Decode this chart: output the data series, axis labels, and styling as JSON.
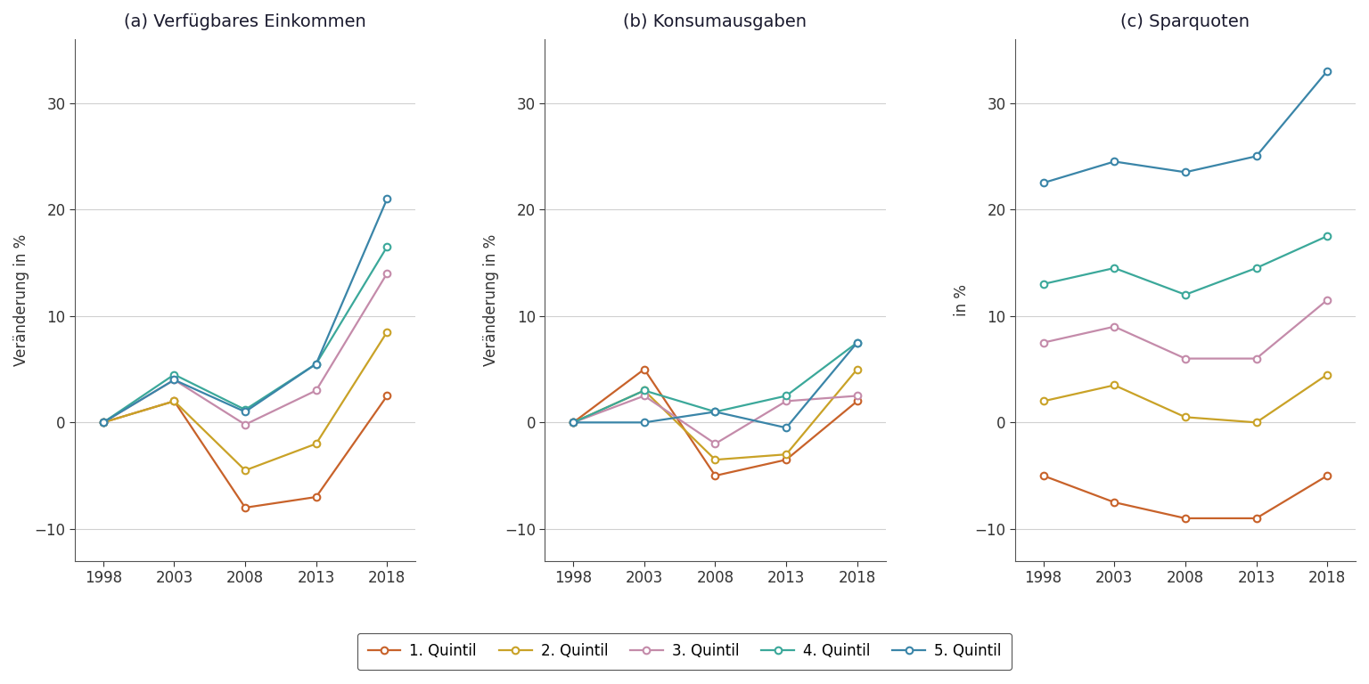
{
  "years": [
    1998,
    2003,
    2008,
    2013,
    2018
  ],
  "panels": [
    {
      "title": "(a) Verfügbares Einkommen",
      "ylabel": "Veränderung in %",
      "ylim": [
        -13,
        36
      ],
      "yticks": [
        -10,
        0,
        10,
        20,
        30
      ],
      "series": [
        {
          "label": "1. Quintil",
          "color": "#C8622A",
          "values": [
            0,
            2.0,
            -8.0,
            -7.0,
            2.5
          ]
        },
        {
          "label": "2. Quintil",
          "color": "#C9A227",
          "values": [
            0,
            2.0,
            -4.5,
            -2.0,
            8.5
          ]
        },
        {
          "label": "3. Quintil",
          "color": "#C48BAA",
          "values": [
            0,
            4.0,
            -0.2,
            3.0,
            14.0
          ]
        },
        {
          "label": "4. Quintil",
          "color": "#3BA89A",
          "values": [
            0,
            4.5,
            1.2,
            5.5,
            16.5
          ]
        },
        {
          "label": "5. Quintil",
          "color": "#3A85A8",
          "values": [
            0,
            4.0,
            1.0,
            5.5,
            21.0
          ]
        }
      ]
    },
    {
      "title": "(b) Konsumausgaben",
      "ylabel": "Veränderung in %",
      "ylim": [
        -13,
        36
      ],
      "yticks": [
        -10,
        0,
        10,
        20,
        30
      ],
      "series": [
        {
          "label": "1. Quintil",
          "color": "#C8622A",
          "values": [
            0,
            5.0,
            -5.0,
            -3.5,
            2.0
          ]
        },
        {
          "label": "2. Quintil",
          "color": "#C9A227",
          "values": [
            0,
            3.0,
            -3.5,
            -3.0,
            5.0
          ]
        },
        {
          "label": "3. Quintil",
          "color": "#C48BAA",
          "values": [
            0,
            2.5,
            -2.0,
            2.0,
            2.5
          ]
        },
        {
          "label": "4. Quintil",
          "color": "#3BA89A",
          "values": [
            0,
            3.0,
            1.0,
            2.5,
            7.5
          ]
        },
        {
          "label": "5. Quintil",
          "color": "#3A85A8",
          "values": [
            0,
            0.0,
            1.0,
            -0.5,
            7.5
          ]
        }
      ]
    },
    {
      "title": "(c) Sparquoten",
      "ylabel": "in %",
      "ylim": [
        -13,
        36
      ],
      "yticks": [
        -10,
        0,
        10,
        20,
        30
      ],
      "series": [
        {
          "label": "1. Quintil",
          "color": "#C8622A",
          "values": [
            -5.0,
            -7.5,
            -9.0,
            -9.0,
            -5.0
          ]
        },
        {
          "label": "2. Quintil",
          "color": "#C9A227",
          "values": [
            2.0,
            3.5,
            0.5,
            0.0,
            4.5
          ]
        },
        {
          "label": "3. Quintil",
          "color": "#C48BAA",
          "values": [
            7.5,
            9.0,
            6.0,
            6.0,
            11.5
          ]
        },
        {
          "label": "4. Quintil",
          "color": "#3BA89A",
          "values": [
            13.0,
            14.5,
            12.0,
            14.5,
            17.5
          ]
        },
        {
          "label": "5. Quintil",
          "color": "#3A85A8",
          "values": [
            22.5,
            24.5,
            23.5,
            25.0,
            33.0
          ]
        }
      ]
    }
  ],
  "legend_labels": [
    "1. Quintil",
    "2. Quintil",
    "3. Quintil",
    "4. Quintil",
    "5. Quintil"
  ],
  "legend_colors": [
    "#C8622A",
    "#C9A227",
    "#C48BAA",
    "#3BA89A",
    "#3A85A8"
  ],
  "background_color": "#ffffff",
  "grid_color": "#d0d0d0",
  "title_fontsize": 14,
  "label_fontsize": 12,
  "tick_fontsize": 12,
  "legend_fontsize": 12
}
